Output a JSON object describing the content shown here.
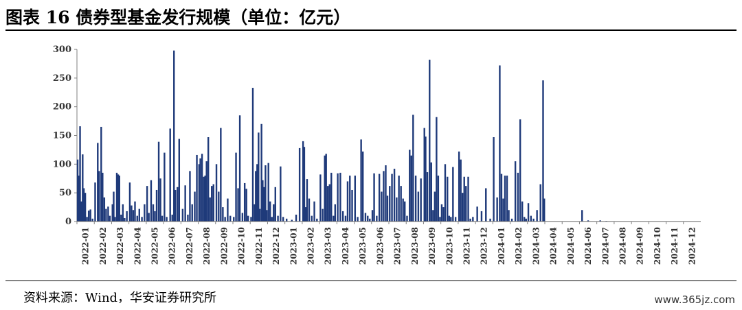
{
  "header": {
    "title": "图表 16 债券型基金发行规模（单位：亿元）"
  },
  "footer": {
    "source": "资料来源：Wind，华安证券研究所",
    "watermark": "www.365jz.com"
  },
  "colors": {
    "bar": "#1f3a7a",
    "axis": "#7f7f7f"
  },
  "chart_data": {
    "type": "bar",
    "title": "债券型基金发行规模",
    "ylabel": "",
    "xlabel": "",
    "ylim": [
      0,
      300
    ],
    "yticks": [
      0,
      50,
      100,
      150,
      200,
      250,
      300
    ],
    "categories": [
      "2022-01",
      "2022-02",
      "2022-03",
      "2022-04",
      "2022-05",
      "2022-06",
      "2022-07",
      "2022-08",
      "2022-09",
      "2022-10",
      "2022-11",
      "2022-12",
      "2023-01",
      "2023-02",
      "2023-03",
      "2023-04",
      "2023-05",
      "2023-06",
      "2023-07",
      "2023-08",
      "2023-09",
      "2023-10",
      "2023-11",
      "2023-12",
      "2024-01",
      "2024-02",
      "2024-03",
      "2024-04",
      "2024-05",
      "2024-06",
      "2024-07",
      "2024-08",
      "2024-09",
      "2024-10",
      "2024-11",
      "2024-12"
    ],
    "bars": [
      {
        "m": 0,
        "f": 0.04,
        "v": 108
      },
      {
        "m": 0,
        "f": 0.1,
        "v": 80
      },
      {
        "m": 0,
        "f": 0.18,
        "v": 166
      },
      {
        "m": 0,
        "f": 0.25,
        "v": 35
      },
      {
        "m": 0,
        "f": 0.33,
        "v": 117
      },
      {
        "m": 0,
        "f": 0.4,
        "v": 58
      },
      {
        "m": 0,
        "f": 0.48,
        "v": 50
      },
      {
        "m": 0,
        "f": 0.58,
        "v": 8
      },
      {
        "m": 0,
        "f": 0.68,
        "v": 19
      },
      {
        "m": 0,
        "f": 0.78,
        "v": 21
      },
      {
        "m": 0,
        "f": 0.9,
        "v": 5
      },
      {
        "m": 1,
        "f": 0.05,
        "v": 68
      },
      {
        "m": 1,
        "f": 0.2,
        "v": 137
      },
      {
        "m": 1,
        "f": 0.28,
        "v": 88
      },
      {
        "m": 1,
        "f": 0.4,
        "v": 165
      },
      {
        "m": 1,
        "f": 0.48,
        "v": 85
      },
      {
        "m": 1,
        "f": 0.58,
        "v": 42
      },
      {
        "m": 1,
        "f": 0.68,
        "v": 22
      },
      {
        "m": 1,
        "f": 0.8,
        "v": 26
      },
      {
        "m": 1,
        "f": 0.9,
        "v": 10
      },
      {
        "m": 2,
        "f": 0.05,
        "v": 30
      },
      {
        "m": 2,
        "f": 0.12,
        "v": 52
      },
      {
        "m": 2,
        "f": 0.2,
        "v": 8
      },
      {
        "m": 2,
        "f": 0.3,
        "v": 85
      },
      {
        "m": 2,
        "f": 0.38,
        "v": 82
      },
      {
        "m": 2,
        "f": 0.45,
        "v": 80
      },
      {
        "m": 2,
        "f": 0.55,
        "v": 12
      },
      {
        "m": 2,
        "f": 0.65,
        "v": 30
      },
      {
        "m": 2,
        "f": 0.75,
        "v": 6
      },
      {
        "m": 2,
        "f": 0.88,
        "v": 18
      },
      {
        "m": 3,
        "f": 0.05,
        "v": 68
      },
      {
        "m": 3,
        "f": 0.15,
        "v": 28
      },
      {
        "m": 3,
        "f": 0.25,
        "v": 20
      },
      {
        "m": 3,
        "f": 0.35,
        "v": 35
      },
      {
        "m": 3,
        "f": 0.48,
        "v": 10
      },
      {
        "m": 3,
        "f": 0.6,
        "v": 22
      },
      {
        "m": 3,
        "f": 0.75,
        "v": 8
      },
      {
        "m": 3,
        "f": 0.9,
        "v": 30
      },
      {
        "m": 4,
        "f": 0.05,
        "v": 62
      },
      {
        "m": 4,
        "f": 0.15,
        "v": 15
      },
      {
        "m": 4,
        "f": 0.28,
        "v": 72
      },
      {
        "m": 4,
        "f": 0.4,
        "v": 30
      },
      {
        "m": 4,
        "f": 0.5,
        "v": 18
      },
      {
        "m": 4,
        "f": 0.6,
        "v": 55
      },
      {
        "m": 4,
        "f": 0.72,
        "v": 139
      },
      {
        "m": 4,
        "f": 0.82,
        "v": 75
      },
      {
        "m": 4,
        "f": 0.92,
        "v": 10
      },
      {
        "m": 5,
        "f": 0.05,
        "v": 120
      },
      {
        "m": 5,
        "f": 0.18,
        "v": 8
      },
      {
        "m": 5,
        "f": 0.38,
        "v": 162
      },
      {
        "m": 5,
        "f": 0.5,
        "v": 12
      },
      {
        "m": 5,
        "f": 0.6,
        "v": 298
      },
      {
        "m": 5,
        "f": 0.68,
        "v": 55
      },
      {
        "m": 5,
        "f": 0.8,
        "v": 60
      },
      {
        "m": 5,
        "f": 0.9,
        "v": 144
      },
      {
        "m": 6,
        "f": 0.1,
        "v": 22
      },
      {
        "m": 6,
        "f": 0.25,
        "v": 63
      },
      {
        "m": 6,
        "f": 0.4,
        "v": 12
      },
      {
        "m": 6,
        "f": 0.52,
        "v": 88
      },
      {
        "m": 6,
        "f": 0.65,
        "v": 30
      },
      {
        "m": 6,
        "f": 0.8,
        "v": 52
      },
      {
        "m": 6,
        "f": 0.92,
        "v": 116
      },
      {
        "m": 7,
        "f": 0.05,
        "v": 100
      },
      {
        "m": 7,
        "f": 0.12,
        "v": 110
      },
      {
        "m": 7,
        "f": 0.22,
        "v": 118
      },
      {
        "m": 7,
        "f": 0.32,
        "v": 78
      },
      {
        "m": 7,
        "f": 0.4,
        "v": 80
      },
      {
        "m": 7,
        "f": 0.48,
        "v": 105
      },
      {
        "m": 7,
        "f": 0.58,
        "v": 147
      },
      {
        "m": 7,
        "f": 0.68,
        "v": 42
      },
      {
        "m": 7,
        "f": 0.78,
        "v": 62
      },
      {
        "m": 7,
        "f": 0.88,
        "v": 65
      },
      {
        "m": 8,
        "f": 0.05,
        "v": 100
      },
      {
        "m": 8,
        "f": 0.18,
        "v": 52
      },
      {
        "m": 8,
        "f": 0.3,
        "v": 163
      },
      {
        "m": 8,
        "f": 0.42,
        "v": 25
      },
      {
        "m": 8,
        "f": 0.55,
        "v": 8
      },
      {
        "m": 8,
        "f": 0.7,
        "v": 40
      },
      {
        "m": 8,
        "f": 0.85,
        "v": 10
      },
      {
        "m": 9,
        "f": 0.05,
        "v": 8
      },
      {
        "m": 9,
        "f": 0.18,
        "v": 120
      },
      {
        "m": 9,
        "f": 0.3,
        "v": 58
      },
      {
        "m": 9,
        "f": 0.4,
        "v": 185
      },
      {
        "m": 9,
        "f": 0.55,
        "v": 15
      },
      {
        "m": 9,
        "f": 0.68,
        "v": 67
      },
      {
        "m": 9,
        "f": 0.78,
        "v": 57
      },
      {
        "m": 9,
        "f": 0.88,
        "v": 10
      },
      {
        "m": 10,
        "f": 0.05,
        "v": 8
      },
      {
        "m": 10,
        "f": 0.15,
        "v": 233
      },
      {
        "m": 10,
        "f": 0.25,
        "v": 30
      },
      {
        "m": 10,
        "f": 0.32,
        "v": 88
      },
      {
        "m": 10,
        "f": 0.4,
        "v": 100
      },
      {
        "m": 10,
        "f": 0.48,
        "v": 155
      },
      {
        "m": 10,
        "f": 0.55,
        "v": 22
      },
      {
        "m": 10,
        "f": 0.65,
        "v": 170
      },
      {
        "m": 10,
        "f": 0.72,
        "v": 72
      },
      {
        "m": 10,
        "f": 0.8,
        "v": 60
      },
      {
        "m": 10,
        "f": 0.88,
        "v": 98
      },
      {
        "m": 10,
        "f": 0.95,
        "v": 20
      },
      {
        "m": 11,
        "f": 0.05,
        "v": 102
      },
      {
        "m": 11,
        "f": 0.15,
        "v": 35
      },
      {
        "m": 11,
        "f": 0.25,
        "v": 8
      },
      {
        "m": 11,
        "f": 0.35,
        "v": 30
      },
      {
        "m": 11,
        "f": 0.45,
        "v": 60
      },
      {
        "m": 11,
        "f": 0.6,
        "v": 10
      },
      {
        "m": 11,
        "f": 0.75,
        "v": 96
      },
      {
        "m": 11,
        "f": 0.9,
        "v": 8
      },
      {
        "m": 12,
        "f": 0.1,
        "v": 5
      },
      {
        "m": 12,
        "f": 0.4,
        "v": 3
      },
      {
        "m": 12,
        "f": 0.65,
        "v": 12
      },
      {
        "m": 12,
        "f": 0.85,
        "v": 128
      },
      {
        "m": 13,
        "f": 0.05,
        "v": 140
      },
      {
        "m": 13,
        "f": 0.12,
        "v": 130
      },
      {
        "m": 13,
        "f": 0.2,
        "v": 25
      },
      {
        "m": 13,
        "f": 0.28,
        "v": 74
      },
      {
        "m": 13,
        "f": 0.4,
        "v": 40
      },
      {
        "m": 13,
        "f": 0.55,
        "v": 10
      },
      {
        "m": 13,
        "f": 0.7,
        "v": 35
      },
      {
        "m": 13,
        "f": 0.85,
        "v": 5
      },
      {
        "m": 14,
        "f": 0.05,
        "v": 82
      },
      {
        "m": 14,
        "f": 0.18,
        "v": 22
      },
      {
        "m": 14,
        "f": 0.3,
        "v": 115
      },
      {
        "m": 14,
        "f": 0.38,
        "v": 118
      },
      {
        "m": 14,
        "f": 0.48,
        "v": 62
      },
      {
        "m": 14,
        "f": 0.58,
        "v": 65
      },
      {
        "m": 14,
        "f": 0.68,
        "v": 85
      },
      {
        "m": 14,
        "f": 0.8,
        "v": 10
      },
      {
        "m": 14,
        "f": 0.9,
        "v": 30
      },
      {
        "m": 15,
        "f": 0.05,
        "v": 84
      },
      {
        "m": 15,
        "f": 0.2,
        "v": 85
      },
      {
        "m": 15,
        "f": 0.35,
        "v": 18
      },
      {
        "m": 15,
        "f": 0.5,
        "v": 10
      },
      {
        "m": 15,
        "f": 0.62,
        "v": 70
      },
      {
        "m": 15,
        "f": 0.75,
        "v": 80
      },
      {
        "m": 15,
        "f": 0.88,
        "v": 55
      },
      {
        "m": 16,
        "f": 0.05,
        "v": 80
      },
      {
        "m": 16,
        "f": 0.2,
        "v": 8
      },
      {
        "m": 16,
        "f": 0.4,
        "v": 143
      },
      {
        "m": 16,
        "f": 0.5,
        "v": 122
      },
      {
        "m": 16,
        "f": 0.65,
        "v": 15
      },
      {
        "m": 16,
        "f": 0.78,
        "v": 10
      },
      {
        "m": 16,
        "f": 0.9,
        "v": 5
      },
      {
        "m": 17,
        "f": 0.05,
        "v": 20
      },
      {
        "m": 17,
        "f": 0.15,
        "v": 84
      },
      {
        "m": 17,
        "f": 0.3,
        "v": 10
      },
      {
        "m": 17,
        "f": 0.45,
        "v": 83
      },
      {
        "m": 17,
        "f": 0.58,
        "v": 52
      },
      {
        "m": 17,
        "f": 0.7,
        "v": 88
      },
      {
        "m": 17,
        "f": 0.82,
        "v": 98
      },
      {
        "m": 17,
        "f": 0.92,
        "v": 45
      },
      {
        "m": 18,
        "f": 0.05,
        "v": 62
      },
      {
        "m": 18,
        "f": 0.18,
        "v": 83
      },
      {
        "m": 18,
        "f": 0.32,
        "v": 92
      },
      {
        "m": 18,
        "f": 0.45,
        "v": 42
      },
      {
        "m": 18,
        "f": 0.58,
        "v": 80
      },
      {
        "m": 18,
        "f": 0.7,
        "v": 62
      },
      {
        "m": 18,
        "f": 0.82,
        "v": 40
      },
      {
        "m": 18,
        "f": 0.92,
        "v": 35
      },
      {
        "m": 19,
        "f": 0.05,
        "v": 10
      },
      {
        "m": 19,
        "f": 0.2,
        "v": 125
      },
      {
        "m": 19,
        "f": 0.3,
        "v": 115
      },
      {
        "m": 19,
        "f": 0.4,
        "v": 186
      },
      {
        "m": 19,
        "f": 0.55,
        "v": 80
      },
      {
        "m": 19,
        "f": 0.7,
        "v": 52
      },
      {
        "m": 19,
        "f": 0.85,
        "v": 75
      },
      {
        "m": 20,
        "f": 0.05,
        "v": 163
      },
      {
        "m": 20,
        "f": 0.12,
        "v": 148
      },
      {
        "m": 20,
        "f": 0.22,
        "v": 86
      },
      {
        "m": 20,
        "f": 0.35,
        "v": 282
      },
      {
        "m": 20,
        "f": 0.45,
        "v": 103
      },
      {
        "m": 20,
        "f": 0.55,
        "v": 20
      },
      {
        "m": 20,
        "f": 0.65,
        "v": 52
      },
      {
        "m": 20,
        "f": 0.75,
        "v": 182
      },
      {
        "m": 20,
        "f": 0.85,
        "v": 80
      },
      {
        "m": 20,
        "f": 0.95,
        "v": 8
      },
      {
        "m": 21,
        "f": 0.05,
        "v": 30
      },
      {
        "m": 21,
        "f": 0.15,
        "v": 25
      },
      {
        "m": 21,
        "f": 0.25,
        "v": 100
      },
      {
        "m": 21,
        "f": 0.38,
        "v": 78
      },
      {
        "m": 21,
        "f": 0.48,
        "v": 10
      },
      {
        "m": 21,
        "f": 0.58,
        "v": 8
      },
      {
        "m": 21,
        "f": 0.7,
        "v": 95
      },
      {
        "m": 21,
        "f": 0.85,
        "v": 8
      },
      {
        "m": 22,
        "f": 0.05,
        "v": 122
      },
      {
        "m": 22,
        "f": 0.15,
        "v": 108
      },
      {
        "m": 22,
        "f": 0.25,
        "v": 50
      },
      {
        "m": 22,
        "f": 0.35,
        "v": 78
      },
      {
        "m": 22,
        "f": 0.45,
        "v": 62
      },
      {
        "m": 22,
        "f": 0.58,
        "v": 78
      },
      {
        "m": 22,
        "f": 0.7,
        "v": 5
      },
      {
        "m": 22,
        "f": 0.85,
        "v": 8
      },
      {
        "m": 23,
        "f": 0.1,
        "v": 26
      },
      {
        "m": 23,
        "f": 0.35,
        "v": 18
      },
      {
        "m": 23,
        "f": 0.6,
        "v": 58
      },
      {
        "m": 23,
        "f": 0.85,
        "v": 5
      },
      {
        "m": 24,
        "f": 0.05,
        "v": 147
      },
      {
        "m": 24,
        "f": 0.25,
        "v": 42
      },
      {
        "m": 24,
        "f": 0.4,
        "v": 272
      },
      {
        "m": 24,
        "f": 0.5,
        "v": 83
      },
      {
        "m": 24,
        "f": 0.6,
        "v": 40
      },
      {
        "m": 24,
        "f": 0.7,
        "v": 80
      },
      {
        "m": 24,
        "f": 0.82,
        "v": 80
      },
      {
        "m": 24,
        "f": 0.92,
        "v": 20
      },
      {
        "m": 25,
        "f": 0.1,
        "v": 5
      },
      {
        "m": 25,
        "f": 0.3,
        "v": 105
      },
      {
        "m": 25,
        "f": 0.45,
        "v": 85
      },
      {
        "m": 25,
        "f": 0.58,
        "v": 178
      },
      {
        "m": 25,
        "f": 0.7,
        "v": 35
      },
      {
        "m": 25,
        "f": 0.82,
        "v": 8
      },
      {
        "m": 25,
        "f": 0.92,
        "v": 5
      },
      {
        "m": 26,
        "f": 0.05,
        "v": 32
      },
      {
        "m": 26,
        "f": 0.2,
        "v": 10
      },
      {
        "m": 26,
        "f": 0.35,
        "v": 5
      },
      {
        "m": 26,
        "f": 0.55,
        "v": 20
      },
      {
        "m": 26,
        "f": 0.75,
        "v": 65
      },
      {
        "m": 26,
        "f": 0.9,
        "v": 246
      },
      {
        "m": 26,
        "f": 0.97,
        "v": 40
      },
      {
        "m": 29,
        "f": 0.15,
        "v": 20
      },
      {
        "m": 29,
        "f": 0.5,
        "v": 2
      },
      {
        "m": 30,
        "f": 0.2,
        "v": 2
      },
      {
        "m": 30,
        "f": 0.55,
        "v": 1
      }
    ]
  }
}
